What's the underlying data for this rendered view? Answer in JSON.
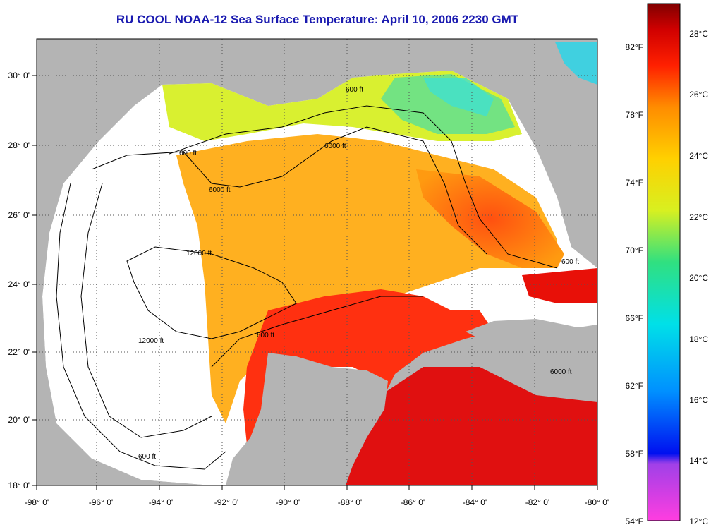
{
  "title": "RU COOL  NOAA-12  Sea Surface Temperature:  April 10, 2006 2230 GMT",
  "axes": {
    "longitude_ticks": [
      "-98° 0'",
      "-96° 0'",
      "-94° 0'",
      "-92° 0'",
      "-90° 0'",
      "-88° 0'",
      "-86° 0'",
      "-84° 0'",
      "-82° 0'",
      "-80° 0'"
    ],
    "latitude_ticks": [
      "30° 0'",
      "28° 0'",
      "26° 0'",
      "24° 0'",
      "22° 0'",
      "20° 0'",
      "18° 0'"
    ]
  },
  "colorbar": {
    "fahrenheit": [
      "82°F",
      "78°F",
      "74°F",
      "70°F",
      "66°F",
      "62°F",
      "58°F",
      "54°F"
    ],
    "celsius": [
      "28°C",
      "26°C",
      "24°C",
      "22°C",
      "20°C",
      "18°C",
      "16°C",
      "14°C",
      "12°C"
    ]
  },
  "contours": [
    "600 ft",
    "6000 ft",
    "12000 ft"
  ],
  "colors": {
    "land": "#b4b4b4",
    "no_data": "#ffffff",
    "title": "#1a1ab0"
  }
}
